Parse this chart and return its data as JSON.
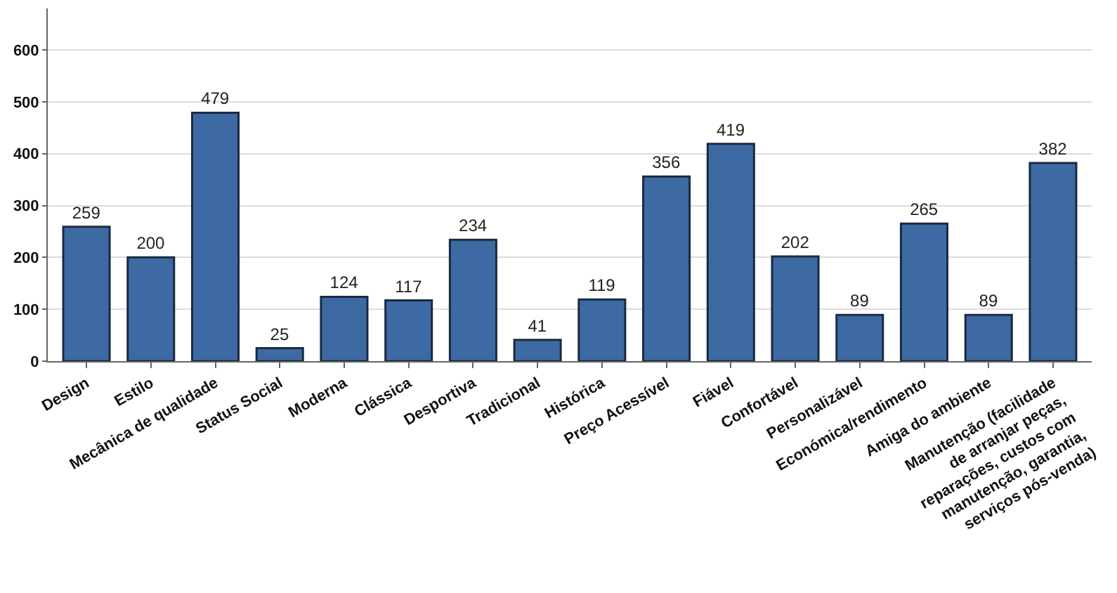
{
  "chart_data": {
    "type": "bar",
    "categories": [
      "Design",
      "Estilo",
      "Mecânica de qualidade",
      "Status Social",
      "Moderna",
      "Clássica",
      "Desportiva",
      "Tradicional",
      "Histórica",
      "Preço Acessível",
      "Fiável",
      "Confortável",
      "Personalizável",
      "Económica/rendimento",
      "Amiga do ambiente",
      "Manutenção (facilidade de arranjar peças, reparações, custos com manutenção, garantia, serviços pós-venda)"
    ],
    "values": [
      259,
      200,
      479,
      25,
      124,
      117,
      234,
      41,
      119,
      356,
      419,
      202,
      89,
      265,
      89,
      382
    ],
    "color": "#3d6aa3",
    "data_labels": true,
    "ylim": [
      0,
      680
    ],
    "yticks": [
      0,
      100,
      200,
      300,
      400,
      500,
      600
    ],
    "grid": "y",
    "legend": false
  }
}
